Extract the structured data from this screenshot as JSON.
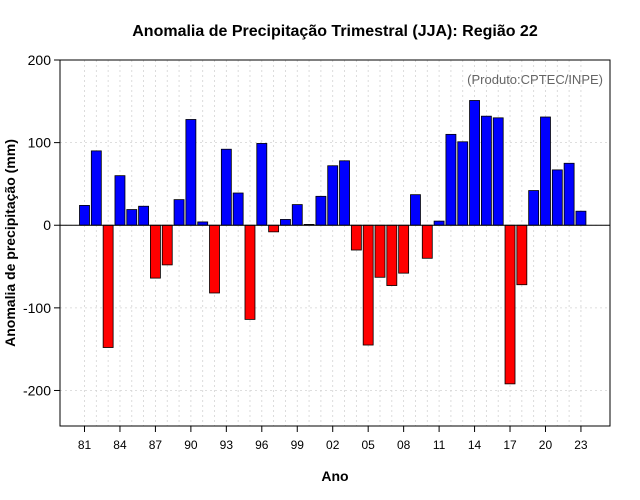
{
  "chart_data": {
    "type": "bar",
    "title": "Anomalia de Precipitação Trimestral (JJA): Região 22",
    "xlabel": "Ano",
    "ylabel": "Anomalia de precipitação (mm)",
    "credit": "(Produto:CPTEC/INPE)",
    "ylim": [
      -243,
      200
    ],
    "yticks": [
      200,
      100,
      0,
      -100,
      -200
    ],
    "ytick_labels": [
      "200",
      "100",
      "0",
      "-100",
      "-200"
    ],
    "years": [
      1981,
      1982,
      1983,
      1984,
      1985,
      1986,
      1987,
      1988,
      1989,
      1990,
      1991,
      1992,
      1993,
      1994,
      1995,
      1996,
      1997,
      1998,
      1999,
      2000,
      2001,
      2002,
      2003,
      2004,
      2005,
      2006,
      2007,
      2008,
      2009,
      2010,
      2011,
      2012,
      2013,
      2014,
      2015,
      2016,
      2017,
      2018,
      2019,
      2020,
      2021,
      2022,
      2023
    ],
    "values": [
      24,
      90,
      -148,
      60,
      19,
      23,
      -64,
      -48,
      31,
      128,
      4,
      -82,
      92,
      39,
      -114,
      99,
      -8,
      7,
      25,
      1,
      35,
      72,
      78,
      -30,
      -145,
      -63,
      -73,
      -58,
      37,
      -40,
      5,
      110,
      101,
      151,
      132,
      130,
      -192,
      -72,
      42,
      131,
      67,
      75,
      17
    ],
    "xtick_years": [
      1981,
      1984,
      1987,
      1990,
      1993,
      1996,
      1999,
      2002,
      2005,
      2008,
      2011,
      2014,
      2017,
      2020,
      2023
    ],
    "xtick_labels": [
      "81",
      "84",
      "87",
      "90",
      "93",
      "96",
      "99",
      "02",
      "05",
      "08",
      "11",
      "14",
      "17",
      "20",
      "23"
    ],
    "grid": true,
    "colors": {
      "positive": "#0000ff",
      "negative": "#ff0000",
      "grid": "#d3d3d3",
      "credit": "#666666"
    }
  }
}
